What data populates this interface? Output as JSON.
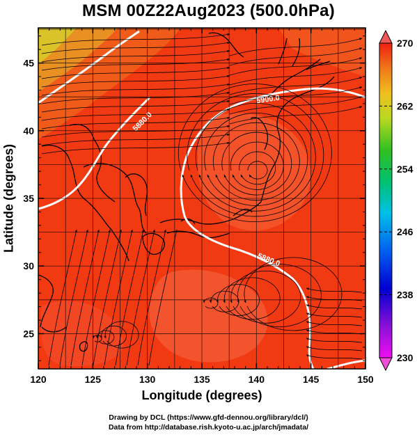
{
  "title": "MSM 00Z22Aug2023 (500.0hPa)",
  "xlabel": "Longitude (degrees)",
  "ylabel": "Latitude  (degrees)",
  "credits": [
    "Drawing by DCL (https://www.gfd-dennou.org/library/dcl/)",
    "Data from http://database.rish.kyoto-u.ac.jp/arch/jmadata/"
  ],
  "map": {
    "lon_range": [
      120,
      150
    ],
    "lat_range": [
      22.4,
      47.6
    ],
    "lon_ticks": [
      120,
      125,
      130,
      135,
      140,
      145,
      150
    ],
    "lat_ticks": [
      25,
      30,
      35,
      40,
      45
    ],
    "lon_tick_labels": [
      "120",
      "125",
      "130",
      "135",
      "140",
      "145",
      "150"
    ],
    "lat_tick_labels": [
      "25",
      "30",
      "35",
      "40",
      "45"
    ],
    "grid_lines": true
  },
  "colorbar": {
    "min": 230,
    "max": 270,
    "tick_labels": [
      "270",
      "262",
      "254",
      "246",
      "238",
      "230"
    ],
    "unit": ""
  },
  "contours": [
    {
      "label": "5880.0"
    },
    {
      "label": "5900.0"
    },
    {
      "label": "5880.0"
    }
  ],
  "colors": {
    "field_main": "#f23a12",
    "field_light": "#f4623a",
    "field_orange": "#f57a20",
    "field_yellow": "#e8c52a",
    "contour": "#ffffff",
    "coast": "#000000"
  }
}
